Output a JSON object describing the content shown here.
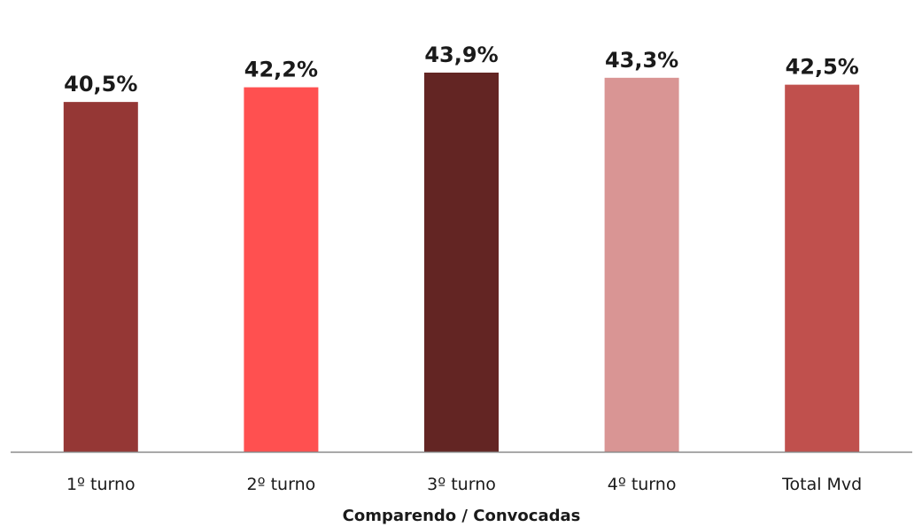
{
  "chart_data": {
    "type": "bar",
    "categories": [
      "1º turno",
      "2º turno",
      "3º turno",
      "4º turno",
      "Total Mvd"
    ],
    "values": [
      40.5,
      42.2,
      43.9,
      43.3,
      42.5
    ],
    "data_labels": [
      "40,5%",
      "42,2%",
      "43,9%",
      "43,3%",
      "42,5%"
    ],
    "colors": [
      "#953735",
      "#FF5050",
      "#632523",
      "#D99594",
      "#C0504D"
    ],
    "title": "",
    "xlabel": "Comparendo / Convocadas",
    "ylabel": "",
    "ylim": [
      0,
      45
    ],
    "grid": false,
    "legend": "none",
    "y_axis_visible": false
  }
}
